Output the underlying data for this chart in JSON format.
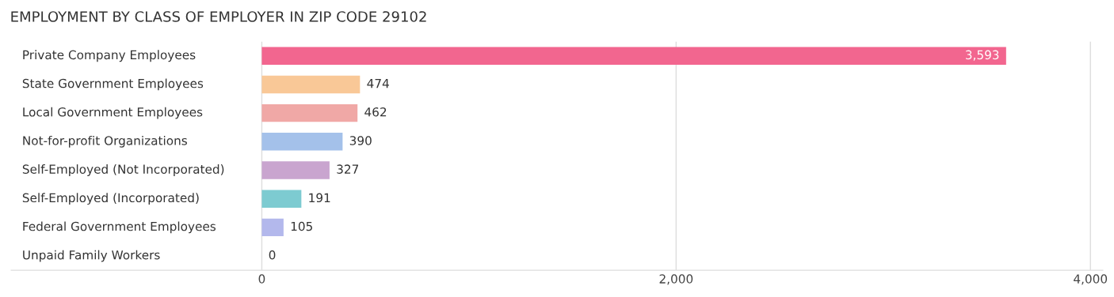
{
  "chart_data": {
    "type": "bar",
    "orientation": "horizontal",
    "title": "EMPLOYMENT BY CLASS OF EMPLOYER IN ZIP CODE 29102",
    "categories": [
      "Private Company Employees",
      "State Government Employees",
      "Local Government Employees",
      "Not-for-profit Organizations",
      "Self-Employed (Not Incorporated)",
      "Self-Employed (Incorporated)",
      "Federal Government Employees",
      "Unpaid Family Workers"
    ],
    "values": [
      3593,
      474,
      462,
      390,
      327,
      191,
      105,
      0
    ],
    "value_labels": [
      "3,593",
      "474",
      "462",
      "390",
      "327",
      "191",
      "105",
      "0"
    ],
    "colors": [
      "#f2668f",
      "#f9c897",
      "#f0a8a6",
      "#a4c1ea",
      "#c9a5cf",
      "#7dcbd1",
      "#b3b8ec",
      "#f7a7c2"
    ],
    "xlim": [
      -1210,
      4060
    ],
    "xticks": [
      {
        "value": 0,
        "label": "0"
      },
      {
        "value": 2000,
        "label": "2,000"
      },
      {
        "value": 4000,
        "label": "4,000"
      }
    ],
    "grid": "x"
  }
}
